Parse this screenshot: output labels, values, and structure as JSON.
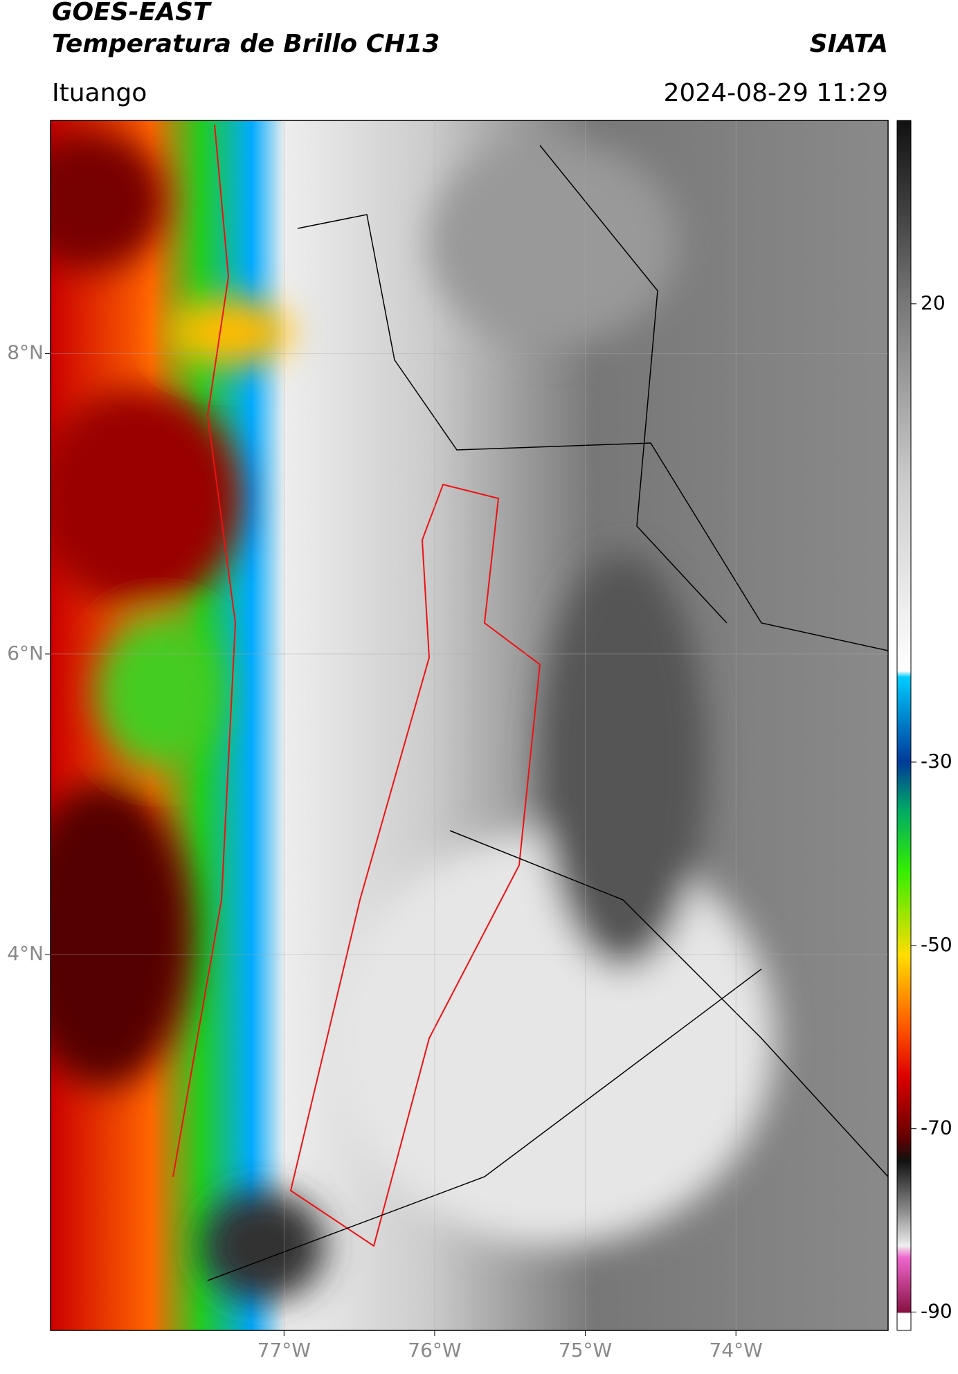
{
  "header": {
    "title": "GOES-EAST",
    "subtitle": "Temperatura de Brillo CH13",
    "source": "SIATA",
    "location": "Ituango",
    "datetime": "2024-08-29 11:29"
  },
  "map": {
    "latlim": [
      1.5,
      9.55
    ],
    "lonlim": [
      -78.55,
      -72.99
    ],
    "latticks": [
      {
        "value": 8,
        "label": "8°N"
      },
      {
        "value": 6,
        "label": "6°N"
      },
      {
        "value": 4,
        "label": "4°N"
      }
    ],
    "lonticks": [
      {
        "value": -77,
        "label": "77°W"
      },
      {
        "value": -76,
        "label": "76°W"
      },
      {
        "value": -75,
        "label": "75°W"
      },
      {
        "value": -74,
        "label": "74°W"
      }
    ]
  },
  "colorbar": {
    "lim": [
      -92,
      40
    ],
    "ticks": [
      20,
      -30,
      -50,
      -70,
      -90
    ]
  }
}
